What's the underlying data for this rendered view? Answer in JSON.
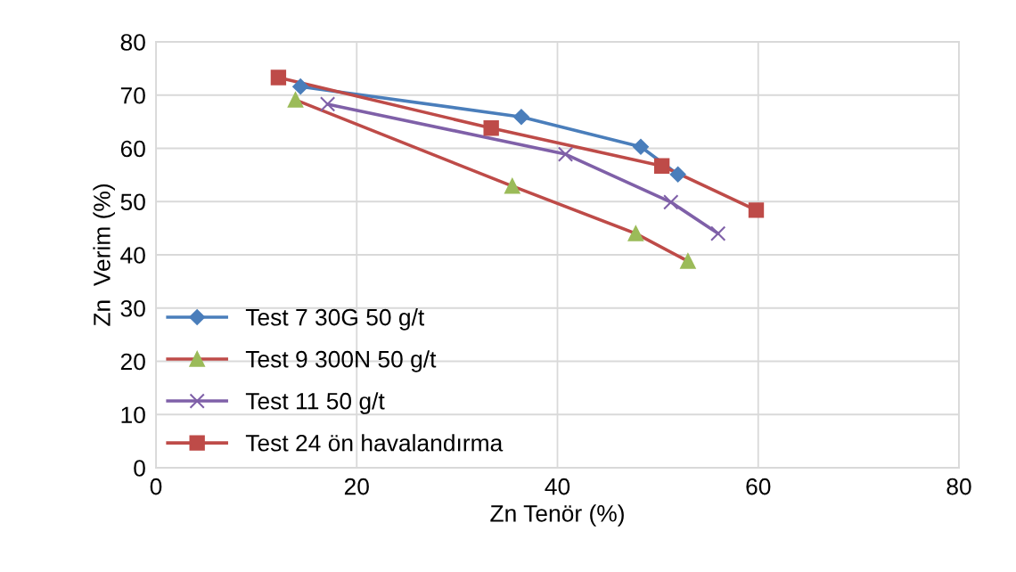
{
  "chart_data": {
    "type": "line",
    "xlabel": "Zn Tenör (%)",
    "ylabel": "Zn  Verim (%)",
    "xlim": [
      0,
      80
    ],
    "xticks": [
      0,
      20,
      40,
      60,
      80
    ],
    "ylim": [
      0,
      80
    ],
    "yticks": [
      0,
      10,
      20,
      30,
      40,
      50,
      60,
      70,
      80
    ],
    "grid": true,
    "legend": "bottom left",
    "series": [
      {
        "name": "Test 7 30G 50 g/t",
        "color": "#4a7ebb",
        "marker": "diamond",
        "x": [
          14.4,
          36.4,
          48.3,
          52.0
        ],
        "values": [
          71.6,
          65.9,
          60.3,
          55.1
        ]
      },
      {
        "name": "Test 9 300N 50 g/t",
        "color": "#be4b48",
        "colors": [
          "#9bbb59",
          "#9bbb59",
          "#9bbb59",
          "#9bbb59"
        ],
        "marker": "triangle",
        "x": [
          13.9,
          35.5,
          47.8,
          53.0
        ],
        "values": [
          69.1,
          52.9,
          44.0,
          38.8
        ]
      },
      {
        "name": "Test 11 50 g/t",
        "color": "#7f60a8",
        "marker": "cross",
        "x": [
          17.1,
          40.8,
          51.3,
          56.0
        ],
        "values": [
          68.3,
          58.9,
          49.9,
          44.0
        ]
      },
      {
        "name": "Test 24 ön havalandırma",
        "color": "#be4b48",
        "marker": "square",
        "x": [
          12.2,
          33.4,
          50.4,
          59.8
        ],
        "values": [
          73.3,
          63.8,
          56.7,
          48.4
        ]
      }
    ]
  }
}
